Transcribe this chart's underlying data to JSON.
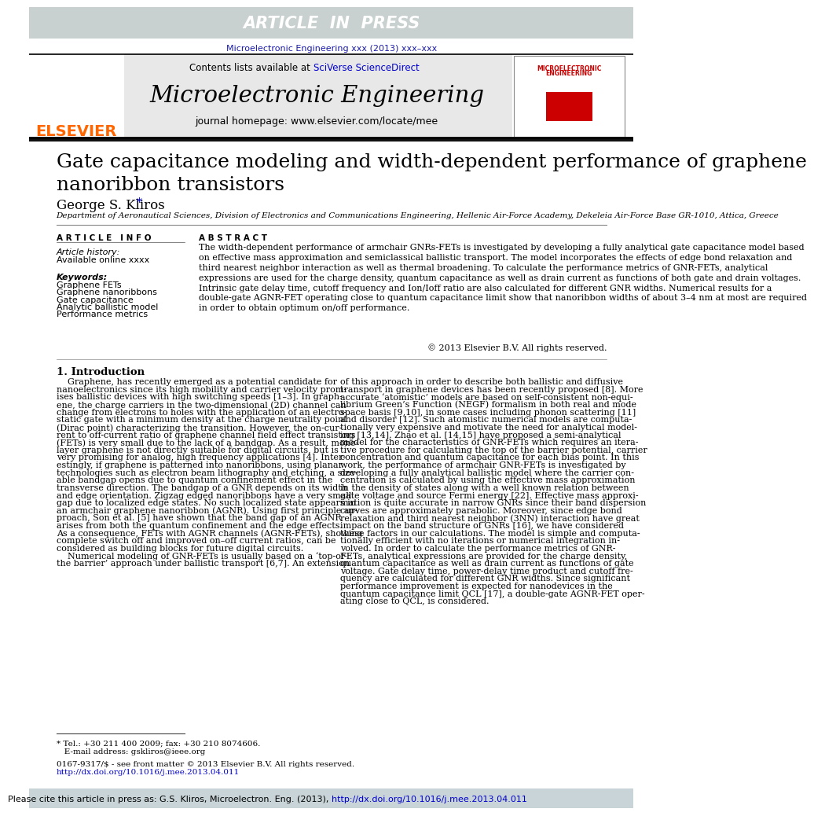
{
  "article_in_press_bg": "#c8d0d0",
  "article_in_press_text": "ARTICLE  IN  PRESS",
  "journal_ref": "Microelectronic Engineering xxx (2013) xxx–xxx",
  "journal_ref_color": "#1a1aaa",
  "contents_text": "Contents lists available at ",
  "sciverse_text": "SciVerse ScienceDirect",
  "sciverse_color": "#0000cc",
  "journal_name": "Microelectronic Engineering",
  "journal_homepage": "journal homepage: www.elsevier.com/locate/mee",
  "elsevier_color": "#ff6600",
  "header_bg": "#e8e8e8",
  "title": "Gate capacitance modeling and width-dependent performance of graphene\nnanoribbon transistors",
  "author": "George S. Kliros",
  "affiliation": "Department of Aeronautical Sciences, Division of Electronics and Communications Engineering, Hellenic Air-Force Academy, Dekeleia Air-Force Base GR-1010, Attica, Greece",
  "article_info_title": "A R T I C L E   I N F O",
  "abstract_title": "A B S T R A C T",
  "article_history": "Article history:",
  "available_online": "Available online xxxx",
  "keywords_title": "Keywords:",
  "keywords": [
    "Graphene FETs",
    "Graphene nanoribbons",
    "Gate capacitance",
    "Analytic ballistic model",
    "Performance metrics"
  ],
  "abstract_text": "The width-dependent performance of armchair GNRs-FETs is investigated by developing a fully analytical gate capacitance model based on effective mass approximation and semiclassical ballistic transport. The model incorporates the effects of edge bond relaxation and third nearest neighbor interaction as well as thermal broadening. To calculate the performance metrics of GNR-FETs, analytical expressions are used for the charge density, quantum capacitance as well as drain current as functions of both gate and drain voltages. Intrinsic gate delay time, cutoff frequency and Ion/Ioff ratio are also calculated for different GNR widths. Numerical results for a double-gate AGNR-FET operating close to quantum capacitance limit show that nanoribbon widths of about 3–4 nm at most are required in order to obtain optimum on/off performance.",
  "copyright": "© 2013 Elsevier B.V. All rights reserved.",
  "section1_title": "1. Introduction",
  "section1_left_lines": [
    "    Graphene, has recently emerged as a potential candidate for",
    "nanoelectronics since its high mobility and carrier velocity prom-",
    "ises ballistic devices with high switching speeds [1–3]. In graph-",
    "ene, the charge carriers in the two-dimensional (2D) channel can",
    "change from electrons to holes with the application of an electro-",
    "static gate with a minimum density at the charge neutrality point",
    "(Dirac point) characterizing the transition. However, the on-cur-",
    "rent to off-current ratio of graphene channel field effect transistors",
    "(FETs) is very small due to the lack of a bandgap. As a result, mono-",
    "layer graphene is not directly suitable for digital circuits, but is",
    "very promising for analog, high frequency applications [4]. Inter-",
    "estingly, if graphene is patterned into nanoribbons, using planar",
    "technologies such as electron beam lithography and etching, a size-",
    "able bandgap opens due to quantum confinement effect in the",
    "transverse direction. The bandgap of a GNR depends on its width",
    "and edge orientation. Zigzag edged nanoribbons have a very small",
    "gap due to localized edge states. No such localized state appears in",
    "an armchair graphene nanoribbon (AGNR). Using first principle ap-",
    "proach, Son et al. [5] have shown that the band gap of an AGNR",
    "arises from both the quantum confinement and the edge effects.",
    "As a consequence, FETs with AGNR channels (AGNR-FETs), showing",
    "complete switch off and improved on–off current ratios, can be",
    "considered as building blocks for future digital circuits.",
    "    Numerical modeling of GNR-FETs is usually based on a ‘top-of-",
    "the barrier’ approach under ballistic transport [6,7]. An extension"
  ],
  "section1_right_lines": [
    "of this approach in order to describe both ballistic and diffusive",
    "transport in graphene devices has been recently proposed [8]. More",
    "accurate ‘atomistic’ models are based on self-consistent non-equi-",
    "librium Green’s Function (NEGF) formalism in both real and mode",
    "space basis [9,10], in some cases including phonon scattering [11]",
    "and disorder [12]. Such atomistic numerical models are computa-",
    "tionally very expensive and motivate the need for analytical model-",
    "ing [13,14]. Zhao et al. [14,15] have proposed a semi-analytical",
    "model for the characteristics of GNR-FETs which requires an itera-",
    "tive procedure for calculating the top of the barrier potential, carrier",
    "concentration and quantum capacitance for each bias point. In this",
    "work, the performance of armchair GNR-FETs is investigated by",
    "developing a fully analytical ballistic model where the carrier con-",
    "centration is calculated by using the effective mass approximation",
    "in the density of states along with a well known relation between",
    "gate voltage and source Fermi energy [22]. Effective mass approxi-",
    "mation is quite accurate in narrow GNRs since their band dispersion",
    "curves are approximately parabolic. Moreover, since edge bond",
    "relaxation and third nearest neighbor (3NN) interaction have great",
    "impact on the band structure of GNRs [16], we have considered",
    "these factors in our calculations. The model is simple and computa-",
    "tionally efficient with no iterations or numerical integration in-",
    "volved. In order to calculate the performance metrics of GNR-",
    "FETs, analytical expressions are provided for the charge density,",
    "quantum capacitance as well as drain current as functions of gate",
    "voltage. Gate delay time, power-delay time product and cutoff fre-",
    "quency are calculated for different GNR widths. Since significant",
    "performance improvement is expected for nanodevices in the",
    "quantum capacitance limit QCL [17], a double-gate AGNR-FET oper-",
    "ating close to QCL, is considered."
  ],
  "footnote1": "* Tel.: +30 211 400 2009; fax: +30 210 8074606.",
  "footnote2": "   E-mail address: gskliros@ieee.org",
  "footnote3": "0167-9317/$ - see front matter © 2013 Elsevier B.V. All rights reserved.",
  "footnote4": "http://dx.doi.org/10.1016/j.mee.2013.04.011",
  "bottom_prefix": "Please cite this article in press as: G.S. Kliros, Microelectron. Eng. (2013), ",
  "bottom_doi": "http://dx.doi.org/10.1016/j.mee.2013.04.011",
  "doi_color": "#0000cc",
  "red_color": "#cc0000"
}
